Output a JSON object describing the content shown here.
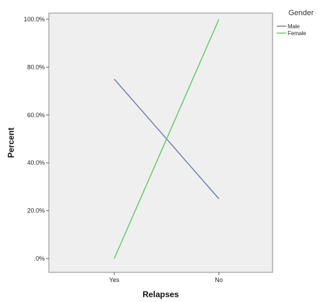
{
  "chart_data": {
    "type": "line",
    "categories": [
      "Yes",
      "No"
    ],
    "series": [
      {
        "name": "Male",
        "values": [
          75,
          25
        ],
        "color": "#6a79b0"
      },
      {
        "name": "Female",
        "values": [
          0,
          100
        ],
        "color": "#5cc85c"
      }
    ],
    "xlabel": "Relapses",
    "ylabel": "Percent",
    "ylim": [
      0,
      100
    ],
    "yticks": [
      0,
      20,
      40,
      60,
      80,
      100
    ],
    "ytick_labels": [
      ".0%",
      "20.0%",
      "40.0%",
      "60.0%",
      "80.0%",
      "100.0%"
    ],
    "legend": {
      "title": "Gender",
      "placement": "top-right"
    },
    "grid": false,
    "plot_background": "#efefef"
  }
}
